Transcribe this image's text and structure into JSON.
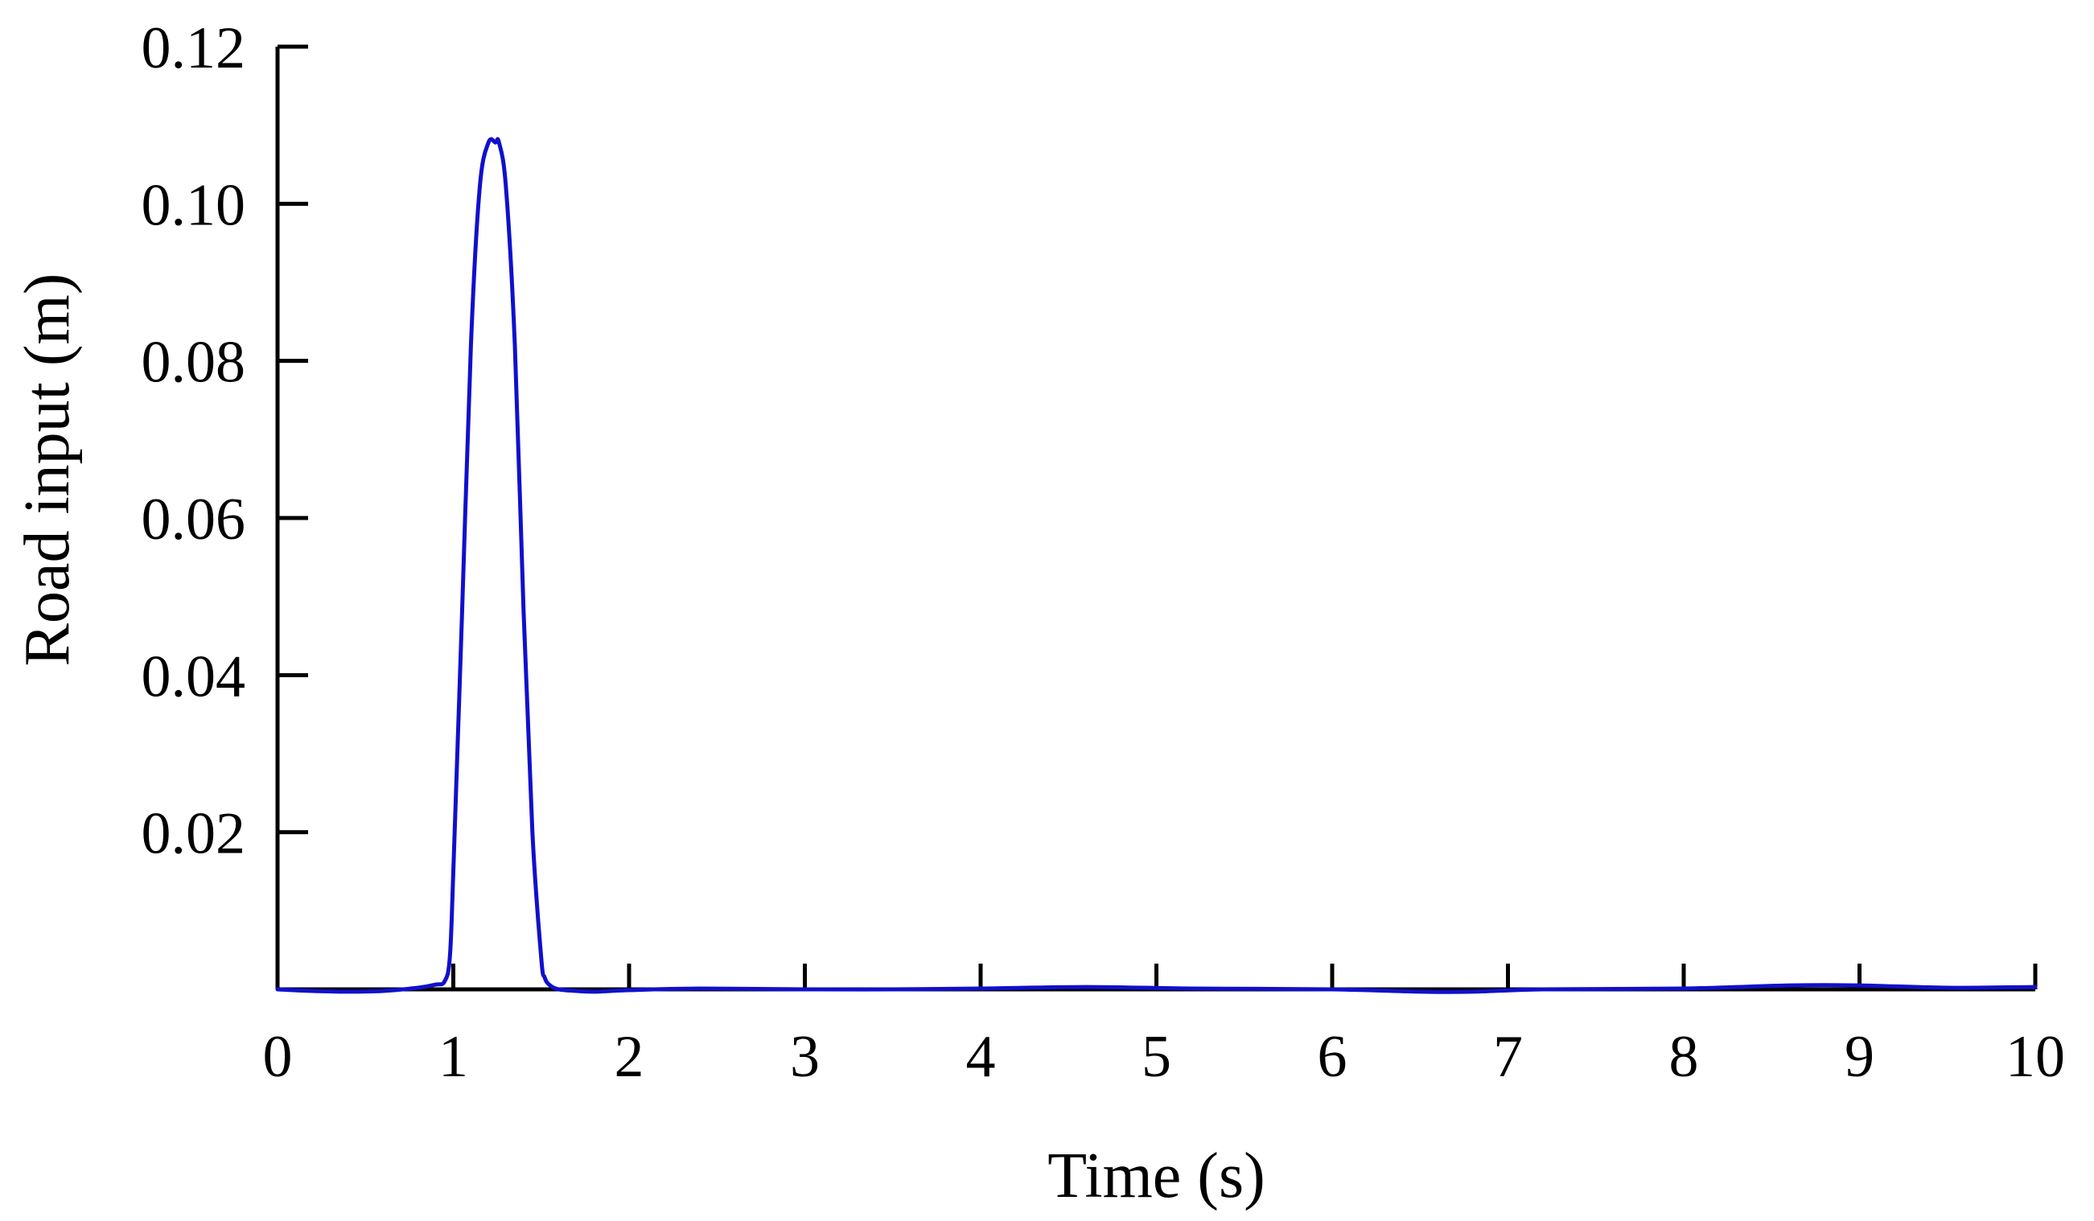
{
  "chart_data": {
    "type": "line",
    "title": "",
    "xlabel": "Time (s)",
    "ylabel": "Road input (m)",
    "xlim": [
      0,
      10
    ],
    "ylim": [
      0,
      0.12
    ],
    "x_ticks": [
      0,
      1,
      2,
      3,
      4,
      5,
      6,
      7,
      8,
      9,
      10
    ],
    "x_tick_labels": [
      "0",
      "1",
      "2",
      "3",
      "4",
      "5",
      "6",
      "7",
      "8",
      "9",
      "10"
    ],
    "y_ticks": [
      0.02,
      0.04,
      0.06,
      0.08,
      0.1,
      0.12
    ],
    "y_tick_labels": [
      "0.02",
      "0.04",
      "0.06",
      "0.08",
      "0.10",
      "0.12"
    ],
    "grid": false,
    "legend": "none",
    "series": [
      {
        "color": "#1010cc",
        "x": [
          0,
          0.2,
          0.4,
          0.6,
          0.8,
          0.9,
          0.95,
          0.98,
          1.0,
          1.05,
          1.1,
          1.15,
          1.2,
          1.24,
          1.26,
          1.3,
          1.35,
          1.4,
          1.45,
          1.5,
          1.52,
          1.55,
          1.6,
          1.7,
          1.8,
          2.0,
          2.4,
          3.0,
          3.5,
          4.0,
          4.6,
          5.2,
          6.0,
          6.5,
          6.8,
          7.2,
          8.0,
          8.6,
          9.0,
          9.5,
          10.0
        ],
        "y": [
          0,
          -0.0002,
          -0.0003,
          -0.0002,
          0.0002,
          0.0006,
          0.001,
          0.004,
          0.015,
          0.048,
          0.082,
          0.102,
          0.1078,
          0.1078,
          0.1078,
          0.102,
          0.082,
          0.048,
          0.02,
          0.004,
          0.0015,
          0.0005,
          0,
          -0.0002,
          -0.0003,
          -0.0001,
          0.0001,
          0,
          0,
          0.0001,
          0.0003,
          0.0001,
          0,
          -0.0003,
          -0.0003,
          0,
          0.0001,
          0.0005,
          0.0005,
          0.0002,
          0.0003
        ]
      }
    ]
  }
}
